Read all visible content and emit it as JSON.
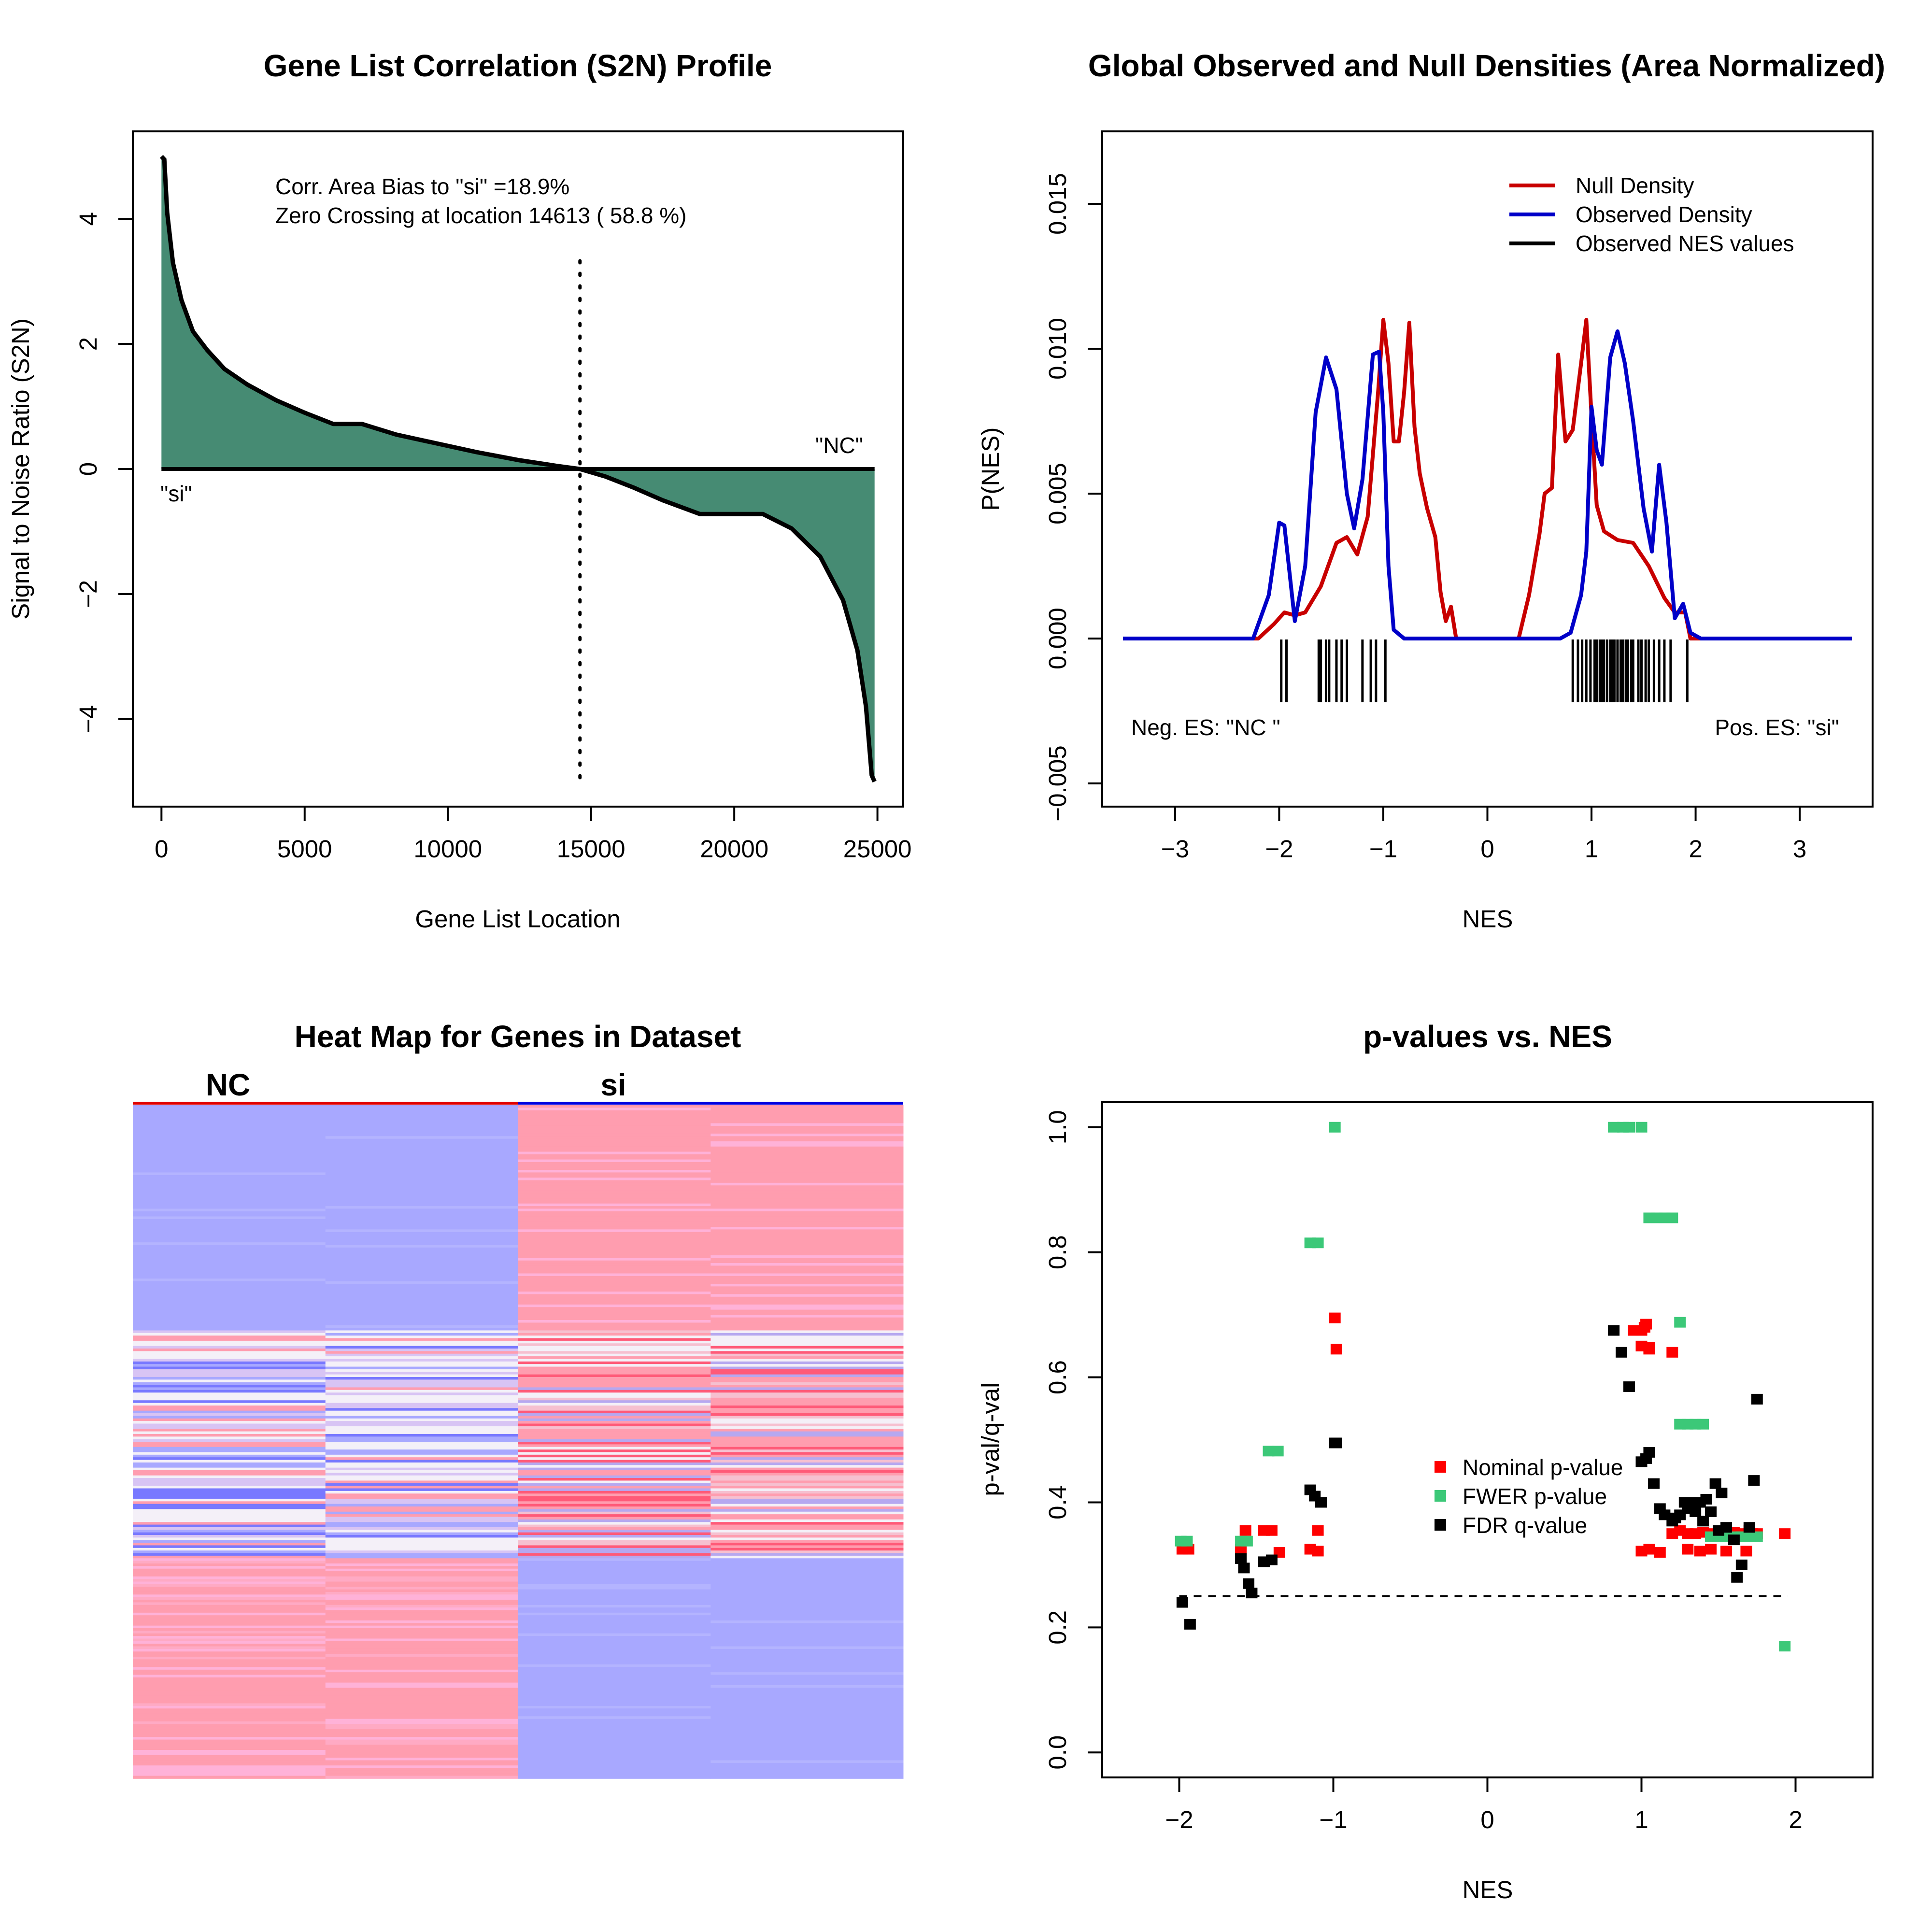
{
  "colors": {
    "fill_green": "#468b73",
    "null_red": "#c80000",
    "obs_blue": "#0000c8",
    "nominal_red": "#ff0000",
    "fwer_green": "#3cc878",
    "fdr_black": "#000000",
    "heat_pink": "#ff9daf",
    "heat_blue": "#a8a8ff",
    "heat_deep_red": "#ff5a78",
    "heat_deep_blue": "#7878ff",
    "heat_white": "#f4f0f8"
  },
  "chart_data": [
    {
      "type": "area",
      "title": "Gene List Correlation (S2N) Profile",
      "xlabel": "Gene List Location",
      "ylabel": "Signal to Noise Ratio (S2N)",
      "xlim": [
        -1000,
        25900
      ],
      "ylim": [
        -5.4,
        5.4
      ],
      "xticks": [
        0,
        5000,
        10000,
        15000,
        20000,
        25000
      ],
      "yticks": [
        -4,
        -2,
        0,
        2,
        4
      ],
      "annotations": [
        "Corr. Area Bias to \"si\" =18.9%",
        "Zero Crossing at location  14613  ( 58.8  %)"
      ],
      "left_label": "\"si\"",
      "right_label": "\"NC\"",
      "zero_crossing": 14613,
      "x": [
        0,
        100,
        200,
        400,
        700,
        1100,
        1600,
        2200,
        3000,
        4000,
        5000,
        6000,
        7000,
        8200,
        9500,
        11000,
        12500,
        13800,
        14613,
        15500,
        16500,
        17500,
        18800,
        21000,
        22000,
        23000,
        23800,
        24300,
        24600,
        24800,
        24900
      ],
      "y": [
        5.0,
        4.95,
        4.1,
        3.3,
        2.7,
        2.2,
        1.9,
        1.6,
        1.35,
        1.1,
        0.9,
        0.72,
        0.72,
        0.55,
        0.42,
        0.27,
        0.14,
        0.05,
        0.0,
        -0.12,
        -0.3,
        -0.5,
        -0.72,
        -0.72,
        -0.95,
        -1.4,
        -2.1,
        -2.9,
        -3.8,
        -4.9,
        -5.0
      ]
    },
    {
      "type": "line",
      "title": "Global Observed and Null Densities (Area Normalized)",
      "xlabel": "NES",
      "ylabel": "P(NES)",
      "xlim": [
        -3.7,
        3.7
      ],
      "ylim": [
        -0.0058,
        0.0175
      ],
      "xticks": [
        -3,
        -2,
        -1,
        0,
        1,
        2,
        3
      ],
      "yticks": [
        -0.005,
        0.0,
        0.005,
        0.01,
        0.015
      ],
      "ytick_labels": [
        "−0.005",
        "0.000",
        "0.005",
        "0.010",
        "0.015"
      ],
      "neg_label": "Neg. ES: \"NC \"",
      "pos_label": "Pos. ES: \"si\"",
      "legend": [
        "Null Density",
        "Observed Density",
        "Observed NES values"
      ],
      "series": [
        {
          "name": "Null Density",
          "x": [
            -3.5,
            -2.2,
            -2.05,
            -1.95,
            -1.85,
            -1.75,
            -1.6,
            -1.45,
            -1.35,
            -1.25,
            -1.15,
            -1.05,
            -1.0,
            -0.95,
            -0.9,
            -0.85,
            -0.8,
            -0.75,
            -0.7,
            -0.65,
            -0.58,
            -0.5,
            -0.45,
            -0.4,
            -0.35,
            -0.3,
            -0.2,
            0.3,
            0.4,
            0.5,
            0.55,
            0.62,
            0.68,
            0.75,
            0.82,
            0.9,
            0.95,
            1.0,
            1.05,
            1.12,
            1.25,
            1.4,
            1.55,
            1.7,
            1.8,
            1.9,
            1.95,
            2.1,
            3.5
          ],
          "y": [
            0,
            0,
            0.0005,
            0.0009,
            0.0008,
            0.0009,
            0.0018,
            0.0033,
            0.0035,
            0.0029,
            0.0042,
            0.0085,
            0.011,
            0.0095,
            0.0068,
            0.0068,
            0.0085,
            0.0109,
            0.0073,
            0.0057,
            0.0045,
            0.0035,
            0.0016,
            0.0006,
            0.0011,
            0.0,
            0,
            0,
            0.0015,
            0.0036,
            0.005,
            0.0052,
            0.0098,
            0.0068,
            0.0072,
            0.0095,
            0.011,
            0.0077,
            0.0046,
            0.0037,
            0.0034,
            0.0033,
            0.0025,
            0.0014,
            0.0009,
            0.0009,
            0.0,
            0,
            0
          ]
        },
        {
          "name": "Observed Density",
          "x": [
            -3.5,
            -2.25,
            -2.1,
            -2.0,
            -1.95,
            -1.85,
            -1.75,
            -1.65,
            -1.55,
            -1.45,
            -1.35,
            -1.28,
            -1.2,
            -1.1,
            -1.04,
            -1.0,
            -0.95,
            -0.9,
            -0.8,
            -0.7,
            0.7,
            0.8,
            0.9,
            0.95,
            1.0,
            1.05,
            1.1,
            1.18,
            1.25,
            1.32,
            1.4,
            1.5,
            1.58,
            1.65,
            1.72,
            1.8,
            1.88,
            1.95,
            2.05,
            3.5
          ],
          "y": [
            0,
            0,
            0.0015,
            0.004,
            0.0039,
            0.0006,
            0.0025,
            0.0078,
            0.0097,
            0.0086,
            0.005,
            0.0038,
            0.0055,
            0.0098,
            0.0099,
            0.0078,
            0.0025,
            0.0003,
            0.0,
            0,
            0,
            0.0002,
            0.0015,
            0.003,
            0.008,
            0.0065,
            0.006,
            0.0097,
            0.0106,
            0.0095,
            0.0075,
            0.0045,
            0.003,
            0.006,
            0.004,
            0.0007,
            0.0012,
            0.0002,
            0,
            0
          ]
        }
      ],
      "observed_nes_values": [
        -1.98,
        -1.93,
        -1.62,
        -1.6,
        -1.55,
        -1.52,
        -1.45,
        -1.4,
        -1.35,
        -1.2,
        -1.12,
        -1.07,
        -0.98,
        0.82,
        0.87,
        0.91,
        0.95,
        0.99,
        1.03,
        1.05,
        1.08,
        1.1,
        1.12,
        1.15,
        1.18,
        1.2,
        1.22,
        1.25,
        1.28,
        1.3,
        1.33,
        1.35,
        1.38,
        1.4,
        1.45,
        1.48,
        1.52,
        1.55,
        1.6,
        1.65,
        1.7,
        1.76,
        1.92
      ]
    },
    {
      "type": "heatmap",
      "title": "Heat Map for Genes in Dataset",
      "column_groups": [
        "NC",
        "si"
      ]
    },
    {
      "type": "scatter",
      "title": "p-values vs. NES",
      "xlabel": "NES",
      "ylabel": "p-val/q-val",
      "xlim": [
        -2.5,
        2.5
      ],
      "ylim": [
        -0.04,
        1.04
      ],
      "xticks": [
        -2,
        -1,
        0,
        1,
        2
      ],
      "yticks": [
        0.0,
        0.2,
        0.4,
        0.6,
        0.8,
        1.0
      ],
      "ytick_labels": [
        "0.0",
        "0.2",
        "0.4",
        "0.6",
        "0.8",
        "1.0"
      ],
      "threshold": 0.25,
      "threshold_range": [
        -2,
        1.95
      ],
      "legend": [
        "Nominal p-value",
        "FWER p-value",
        "FDR q-value"
      ],
      "series": [
        {
          "name": "Nominal p-value",
          "x": [
            -1.98,
            -1.94,
            -1.6,
            -1.57,
            -1.45,
            -1.4,
            -1.35,
            -1.15,
            -1.1,
            -1.1,
            -0.99,
            -0.98,
            0.95,
            1.0,
            1.02,
            1.03,
            1.05,
            1.0,
            1.05,
            1.2,
            1.0,
            1.05,
            1.12,
            1.3,
            1.35,
            1.4,
            1.45,
            1.5,
            1.55,
            1.6,
            1.65,
            1.7,
            1.75,
            1.2,
            1.25,
            1.3,
            1.38,
            1.45,
            1.55,
            1.68,
            1.72,
            1.93
          ],
          "y": [
            0.325,
            0.325,
            0.325,
            0.355,
            0.355,
            0.355,
            0.32,
            0.325,
            0.322,
            0.355,
            0.695,
            0.645,
            0.675,
            0.675,
            0.68,
            0.685,
            0.645,
            0.65,
            0.648,
            0.64,
            0.322,
            0.325,
            0.32,
            0.35,
            0.35,
            0.352,
            0.35,
            0.352,
            0.35,
            0.352,
            0.35,
            0.355,
            0.35,
            0.35,
            0.355,
            0.325,
            0.322,
            0.325,
            0.322,
            0.322,
            0.35,
            0.35
          ]
        },
        {
          "name": "FWER p-value",
          "x": [
            -1.99,
            -1.95,
            -1.6,
            -1.56,
            -1.42,
            -1.36,
            -1.15,
            -1.1,
            -0.99,
            0.82,
            0.88,
            0.92,
            1.0,
            1.05,
            1.1,
            1.15,
            1.2,
            1.25,
            1.25,
            1.3,
            1.35,
            1.4,
            1.45,
            1.5,
            1.55,
            1.6,
            1.65,
            1.7,
            1.75,
            1.93
          ],
          "y": [
            0.338,
            0.338,
            0.338,
            0.338,
            0.482,
            0.482,
            0.815,
            0.815,
            1.0,
            1.0,
            1.0,
            1.0,
            1.0,
            0.855,
            0.855,
            0.855,
            0.855,
            0.688,
            0.525,
            0.525,
            0.525,
            0.525,
            0.345,
            0.345,
            0.345,
            0.345,
            0.345,
            0.345,
            0.345,
            0.17
          ]
        },
        {
          "name": "FDR q-value",
          "x": [
            -1.98,
            -1.93,
            -1.6,
            -1.58,
            -1.55,
            -1.53,
            -1.45,
            -1.4,
            -1.15,
            -1.12,
            -1.08,
            -0.99,
            -0.98,
            0.82,
            0.87,
            0.92,
            1.0,
            1.03,
            1.05,
            1.08,
            1.12,
            1.15,
            1.2,
            1.22,
            1.25,
            1.28,
            1.3,
            1.32,
            1.35,
            1.38,
            1.4,
            1.42,
            1.45,
            1.48,
            1.5,
            1.52,
            1.55,
            1.6,
            1.62,
            1.65,
            1.7,
            1.73,
            1.75
          ],
          "y": [
            0.24,
            0.205,
            0.31,
            0.295,
            0.27,
            0.255,
            0.305,
            0.308,
            0.42,
            0.41,
            0.4,
            0.495,
            0.495,
            0.675,
            0.64,
            0.585,
            0.465,
            0.47,
            0.48,
            0.43,
            0.39,
            0.38,
            0.37,
            0.375,
            0.38,
            0.4,
            0.39,
            0.4,
            0.385,
            0.4,
            0.37,
            0.405,
            0.385,
            0.43,
            0.355,
            0.415,
            0.36,
            0.34,
            0.28,
            0.3,
            0.36,
            0.435,
            0.565
          ]
        }
      ]
    }
  ]
}
